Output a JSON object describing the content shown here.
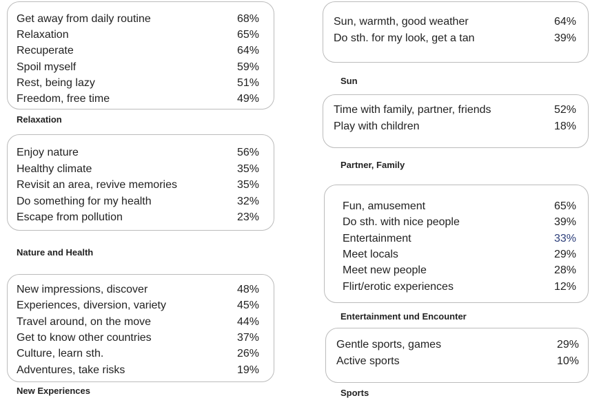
{
  "groups": [
    {
      "title": "Relaxation",
      "items": [
        {
          "label": "Get away from daily routine",
          "value": "68%"
        },
        {
          "label": "Relaxation",
          "value": "65%"
        },
        {
          "label": "Recuperate",
          "value": "64%"
        },
        {
          "label": "Spoil myself",
          "value": "59%"
        },
        {
          "label": "Rest, being lazy",
          "value": "51%"
        },
        {
          "label": "Freedom, free time",
          "value": "49%"
        }
      ]
    },
    {
      "title": "Nature and Health",
      "items": [
        {
          "label": "Enjoy nature",
          "value": "56%"
        },
        {
          "label": "Healthy climate",
          "value": "35%"
        },
        {
          "label": "Revisit an area, revive memories",
          "value": "35%"
        },
        {
          "label": "Do something for my health",
          "value": "32%"
        },
        {
          "label": "Escape from pollution",
          "value": "23%"
        }
      ]
    },
    {
      "title": "New Experiences",
      "items": [
        {
          "label": "New impressions, discover",
          "value": "48%"
        },
        {
          "label": "Experiences, diversion, variety",
          "value": "45%"
        },
        {
          "label": "Travel around, on the move",
          "value": "44%"
        },
        {
          "label": "Get to know other countries",
          "value": "37%"
        },
        {
          "label": "Culture, learn sth.",
          "value": "26%"
        },
        {
          "label": "Adventures, take risks",
          "value": "19%"
        }
      ]
    },
    {
      "title": "Sun",
      "items": [
        {
          "label": "Sun, warmth, good weather",
          "value": "64%"
        },
        {
          "label": "Do sth. for my look, get a tan",
          "value": "39%"
        }
      ]
    },
    {
      "title": "Partner, Family",
      "items": [
        {
          "label": "Time with family, partner, friends",
          "value": "52%"
        },
        {
          "label": "Play with children",
          "value": "18%"
        }
      ]
    },
    {
      "title": "Entertainment und Encounter",
      "items": [
        {
          "label": "Fun, amusement",
          "value": "65%"
        },
        {
          "label": "Do sth. with nice people",
          "value": "39%"
        },
        {
          "label": "Entertainment",
          "value": "33%"
        },
        {
          "label": "Meet locals",
          "value": "29%"
        },
        {
          "label": "Meet new people",
          "value": "28%"
        },
        {
          "label": "Flirt/erotic experiences",
          "value": "12%"
        }
      ]
    },
    {
      "title": "Sports",
      "items": [
        {
          "label": "Gentle sports, games",
          "value": "29%"
        },
        {
          "label": "Active sports",
          "value": "10%"
        }
      ]
    }
  ]
}
